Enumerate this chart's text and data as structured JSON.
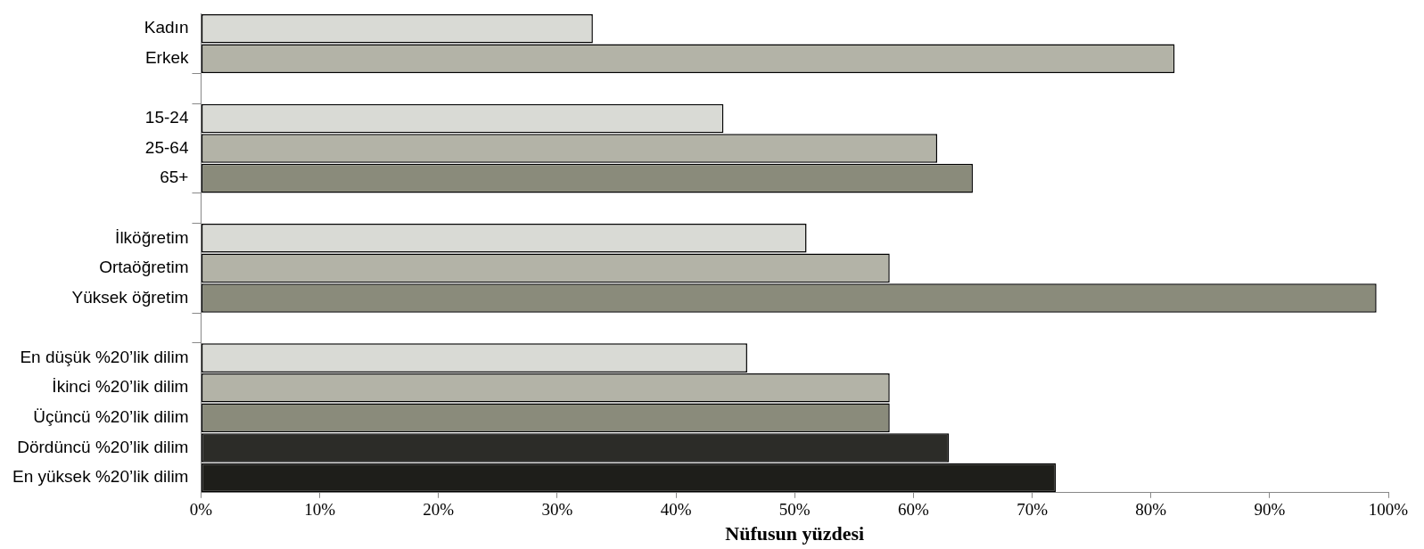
{
  "chart_data": {
    "type": "bar",
    "orientation": "horizontal",
    "xlabel": "Nüfusun yüzdesi",
    "categories": [
      "Kadın",
      "Erkek",
      null,
      "15-24",
      "25-64",
      "65+",
      null,
      "İlköğretim",
      "Ortaöğretim",
      "Yüksek öğretim",
      null,
      "En düşük %20’lik dilim",
      "İkinci %20’lik dilim",
      "Üçüncü %20’lik dilim",
      "Dördüncü %20’lik dilim",
      "En yüksek %20’lik dilim"
    ],
    "values": [
      33,
      82,
      null,
      44,
      62,
      65,
      null,
      51,
      58,
      99,
      null,
      46,
      58,
      58,
      63,
      72
    ],
    "colors": [
      "#d9dad5",
      "#b3b3a7",
      null,
      "#d9dad5",
      "#b3b3a7",
      "#8a8b7b",
      null,
      "#d9dad5",
      "#b3b3a7",
      "#8a8b7b",
      null,
      "#d9dad5",
      "#b3b3a7",
      "#8a8b7b",
      "#2c2c28",
      "#1e1e1a"
    ],
    "xlim": [
      0,
      100
    ],
    "xticks": [
      {
        "value": 0,
        "label": "0%"
      },
      {
        "value": 10,
        "label": "10%"
      },
      {
        "value": 20,
        "label": "20%"
      },
      {
        "value": 30,
        "label": "30%"
      },
      {
        "value": 40,
        "label": "40%"
      },
      {
        "value": 50,
        "label": "50%"
      },
      {
        "value": 60,
        "label": "60%"
      },
      {
        "value": 70,
        "label": "70%"
      },
      {
        "value": 80,
        "label": "80%"
      },
      {
        "value": 90,
        "label": "90%"
      },
      {
        "value": 100,
        "label": "100%"
      }
    ],
    "grid": false,
    "legend": false
  }
}
